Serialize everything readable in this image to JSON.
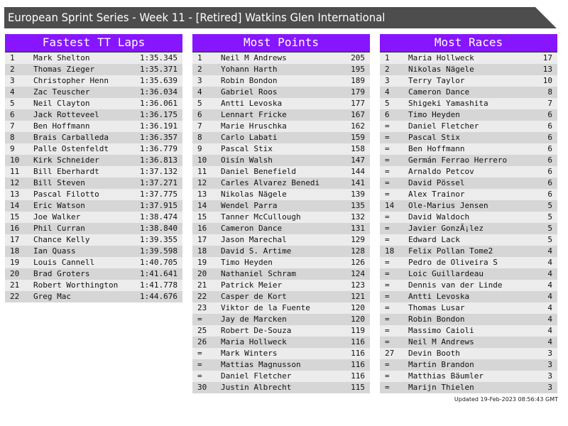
{
  "title": "European Sprint Series - Week 11 - [Retired] Watkins Glen International",
  "panels": [
    {
      "heading": "Fastest TT Laps",
      "rows": [
        [
          "1",
          "Mark Shelton",
          "1:35.345"
        ],
        [
          "2",
          "Thomas Zieger",
          "1:35.371"
        ],
        [
          "3",
          "Christopher Henn",
          "1:35.639"
        ],
        [
          "4",
          "Zac Teuscher",
          "1:36.034"
        ],
        [
          "5",
          "Neil Clayton",
          "1:36.061"
        ],
        [
          "6",
          "Jack Rotteveel",
          "1:36.175"
        ],
        [
          "7",
          "Ben Hoffmann",
          "1:36.191"
        ],
        [
          "8",
          "Brais Carballeda",
          "1:36.357"
        ],
        [
          "9",
          "Palle Ostenfeldt",
          "1:36.779"
        ],
        [
          "10",
          "Kirk Schneider",
          "1:36.813"
        ],
        [
          "11",
          "Bill Eberhardt",
          "1:37.132"
        ],
        [
          "12",
          "Bill Steven",
          "1:37.271"
        ],
        [
          "13",
          "Pascal Filotto",
          "1:37.775"
        ],
        [
          "14",
          "Eric Watson",
          "1:37.915"
        ],
        [
          "15",
          "Joe Walker",
          "1:38.474"
        ],
        [
          "16",
          "Phil Curran",
          "1:38.840"
        ],
        [
          "17",
          "Chance Kelly",
          "1:39.355"
        ],
        [
          "18",
          "Ian Quass",
          "1:39.598"
        ],
        [
          "19",
          "Louis Cannell",
          "1:40.705"
        ],
        [
          "20",
          "Brad Groters",
          "1:41.641"
        ],
        [
          "21",
          "Robert Worthington",
          "1:41.778"
        ],
        [
          "22",
          "Greg Mac",
          "1:44.676"
        ]
      ]
    },
    {
      "heading": "Most Points",
      "rows": [
        [
          "1",
          "Neil M Andrews",
          "205"
        ],
        [
          "2",
          "Yohann Harth",
          "195"
        ],
        [
          "3",
          "Robin Bondon",
          "189"
        ],
        [
          "4",
          "Gabriel Roos",
          "179"
        ],
        [
          "5",
          "Antti Levoska",
          "177"
        ],
        [
          "6",
          "Lennart Fricke",
          "167"
        ],
        [
          "7",
          "Marie Hruschka",
          "162"
        ],
        [
          "8",
          "Carlo Labati",
          "159"
        ],
        [
          "9",
          "Pascal Stix",
          "158"
        ],
        [
          "10",
          "Oisín Walsh",
          "147"
        ],
        [
          "11",
          "Daniel Benefield",
          "144"
        ],
        [
          "12",
          "Carles Alvarez Benedi",
          "141"
        ],
        [
          "13",
          "Nikolas Nägele",
          "139"
        ],
        [
          "14",
          "Wendel Parra",
          "135"
        ],
        [
          "15",
          "Tanner McCullough",
          "132"
        ],
        [
          "16",
          "Cameron Dance",
          "131"
        ],
        [
          "17",
          "Jason Marechal",
          "129"
        ],
        [
          "18",
          "David S. Artime",
          "128"
        ],
        [
          "19",
          "Timo Heyden",
          "126"
        ],
        [
          "20",
          "Nathaniel Schram",
          "124"
        ],
        [
          "21",
          "Patrick Meier",
          "123"
        ],
        [
          "22",
          "Casper de Kort",
          "121"
        ],
        [
          "23",
          "Viktor de la Fuente",
          "120"
        ],
        [
          "=",
          "Jay de Marcken",
          "120"
        ],
        [
          "25",
          "Robert De-Souza",
          "119"
        ],
        [
          "26",
          "Maria Hollweck",
          "116"
        ],
        [
          "=",
          "Mark Winters",
          "116"
        ],
        [
          "=",
          "Mattias Magnusson",
          "116"
        ],
        [
          "=",
          "Daniel Fletcher",
          "116"
        ],
        [
          "30",
          "Justin Albrecht",
          "115"
        ]
      ]
    },
    {
      "heading": "Most Races",
      "rows": [
        [
          "1",
          "Maria Hollweck",
          "17"
        ],
        [
          "2",
          "Nikolas Nägele",
          "13"
        ],
        [
          "3",
          "Terry Taylor",
          "10"
        ],
        [
          "4",
          "Cameron Dance",
          "8"
        ],
        [
          "5",
          "Shigeki Yamashita",
          "7"
        ],
        [
          "6",
          "Timo Heyden",
          "6"
        ],
        [
          "=",
          "Daniel Fletcher",
          "6"
        ],
        [
          "=",
          "Pascal Stix",
          "6"
        ],
        [
          "=",
          "Ben Hoffmann",
          "6"
        ],
        [
          "=",
          "Germán Ferrao Herrero",
          "6"
        ],
        [
          "=",
          "Arnaldo Petcov",
          "6"
        ],
        [
          "=",
          "David Pössel",
          "6"
        ],
        [
          "=",
          "Alex Trainor",
          "6"
        ],
        [
          "14",
          "Ole-Marius Jensen",
          "5"
        ],
        [
          "=",
          "David Waldoch",
          "5"
        ],
        [
          "=",
          "Javier GonzÃ¡lez",
          "5"
        ],
        [
          "=",
          "Edward Lack",
          "5"
        ],
        [
          "18",
          "Felix Pollan Tome2",
          "4"
        ],
        [
          "=",
          "Pedro de Oliveira S",
          "4"
        ],
        [
          "=",
          "Loic Guillardeau",
          "4"
        ],
        [
          "=",
          "Dennis van der Linde",
          "4"
        ],
        [
          "=",
          "Antti Levoska",
          "4"
        ],
        [
          "=",
          "Thomas Lusar",
          "4"
        ],
        [
          "=",
          "Robin Bondon",
          "4"
        ],
        [
          "=",
          "Massimo Caioli",
          "4"
        ],
        [
          "=",
          "Neil M Andrews",
          "4"
        ],
        [
          "27",
          "Devin Booth",
          "3"
        ],
        [
          "=",
          "Martin Brandon",
          "3"
        ],
        [
          "=",
          "Matthias Bäumler",
          "3"
        ],
        [
          "=",
          "Marijn Thielen",
          "3"
        ]
      ]
    }
  ],
  "updated": "Updated 19-Feb-2023 08:56:43 GMT"
}
